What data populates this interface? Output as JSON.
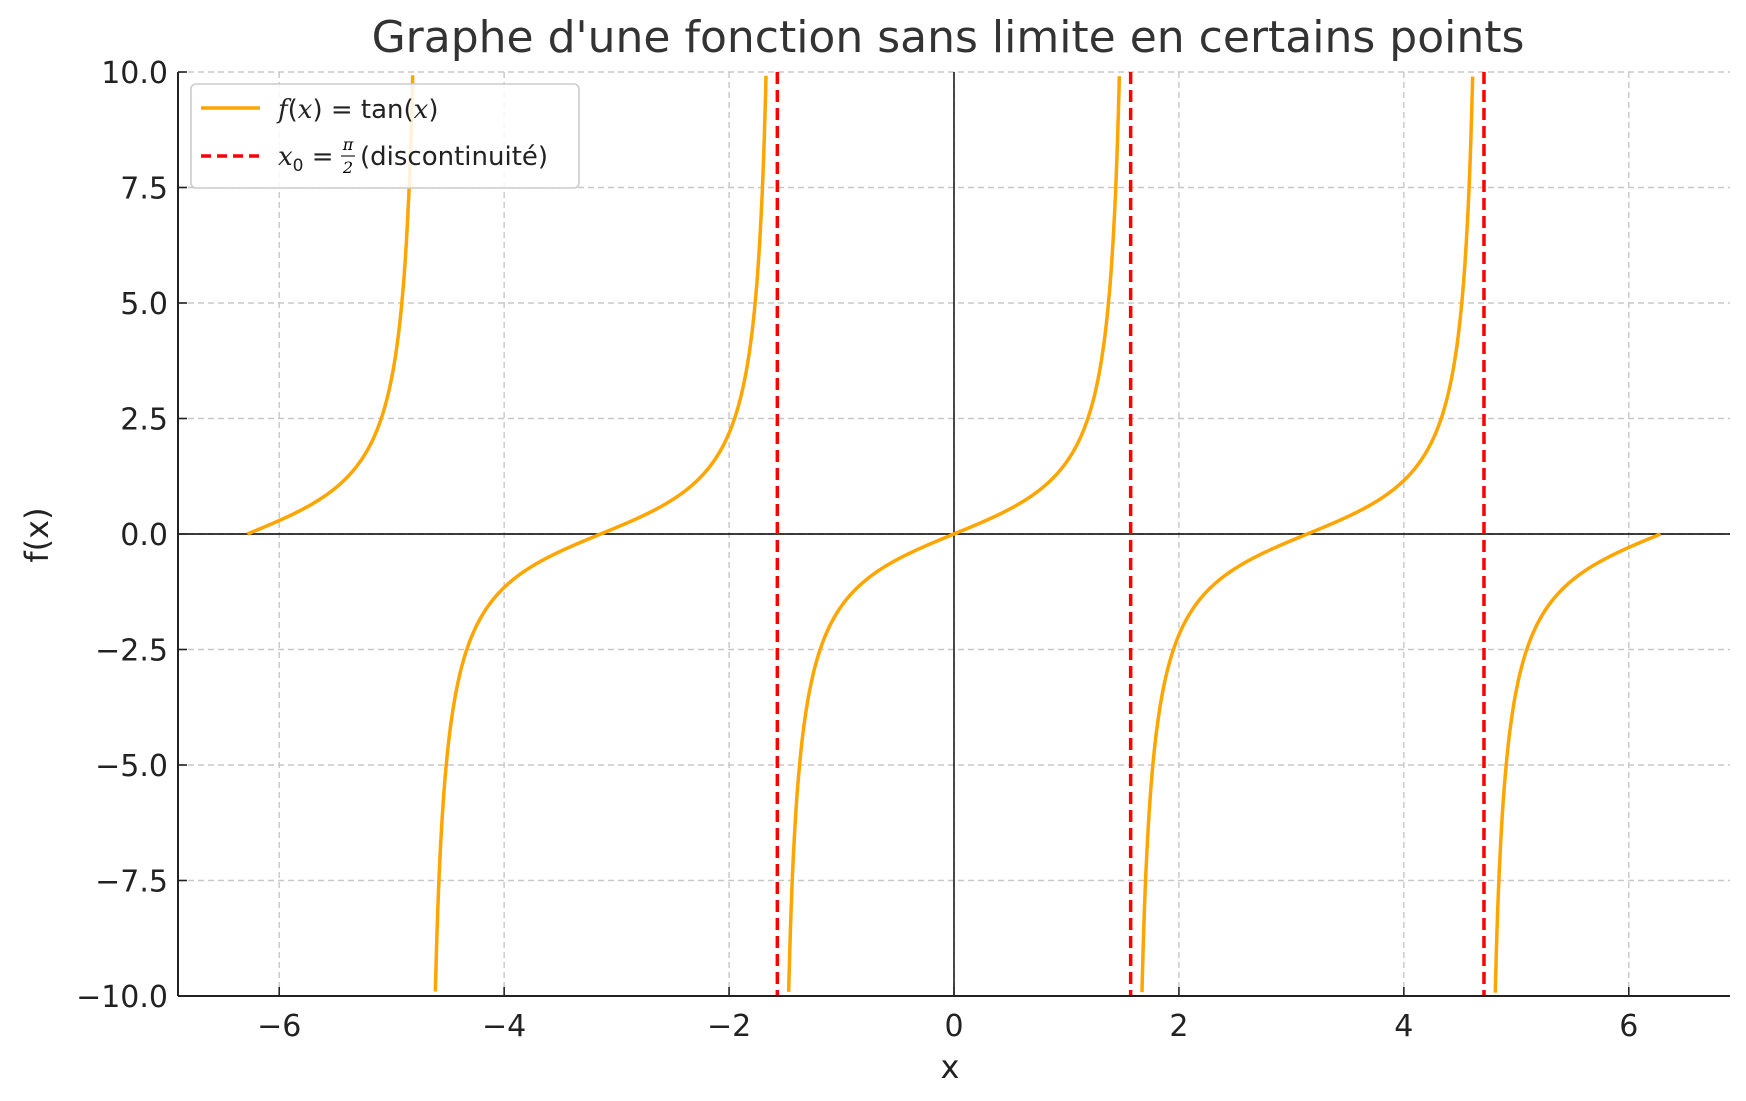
{
  "chart_data": {
    "type": "line",
    "title": "Graphe d'une fonction sans limite en certains points",
    "xlabel": "x",
    "ylabel": "f(x)",
    "xlim": [
      -6.9,
      6.9
    ],
    "ylim": [
      -10,
      10
    ],
    "x_ticks": [
      -6,
      -4,
      -2,
      0,
      2,
      4,
      6
    ],
    "x_tick_labels": [
      "−6",
      "−4",
      "−2",
      "0",
      "2",
      "4",
      "6"
    ],
    "y_ticks": [
      -10,
      -7.5,
      -5,
      -2.5,
      0,
      2.5,
      5,
      7.5,
      10
    ],
    "y_tick_labels": [
      "−10.0",
      "−7.5",
      "−5.0",
      "−2.5",
      "0.0",
      "2.5",
      "5.0",
      "7.5",
      "10.0"
    ],
    "grid": true,
    "legend_position": "top-left",
    "series": [
      {
        "name": "f(x) = tan(x)",
        "function": "tan",
        "domain": [
          -6.283,
          6.283
        ],
        "clip": 10,
        "color": "#FFA500",
        "style": "solid"
      }
    ],
    "vertical_lines": {
      "name": "x0 = π/2 (discontinuité)",
      "x": [
        -1.5708,
        1.5708,
        4.7124
      ],
      "color": "#FF0000",
      "style": "dashed"
    },
    "reference_lines": {
      "x_axis_at": 0,
      "y_axis_at": 0,
      "color": "#000000"
    }
  },
  "legend": {
    "entry1_fx": "f",
    "entry1_mid": "(",
    "entry1_x": "x",
    "entry1_eq": ") = tan(",
    "entry1_x2": "x",
    "entry1_end": ")",
    "entry2_x0": "x",
    "entry2_sub": "0",
    "entry2_eq": " = ",
    "entry2_pi": "π",
    "entry2_two": "2",
    "entry2_rest": " (discontinuité)"
  }
}
